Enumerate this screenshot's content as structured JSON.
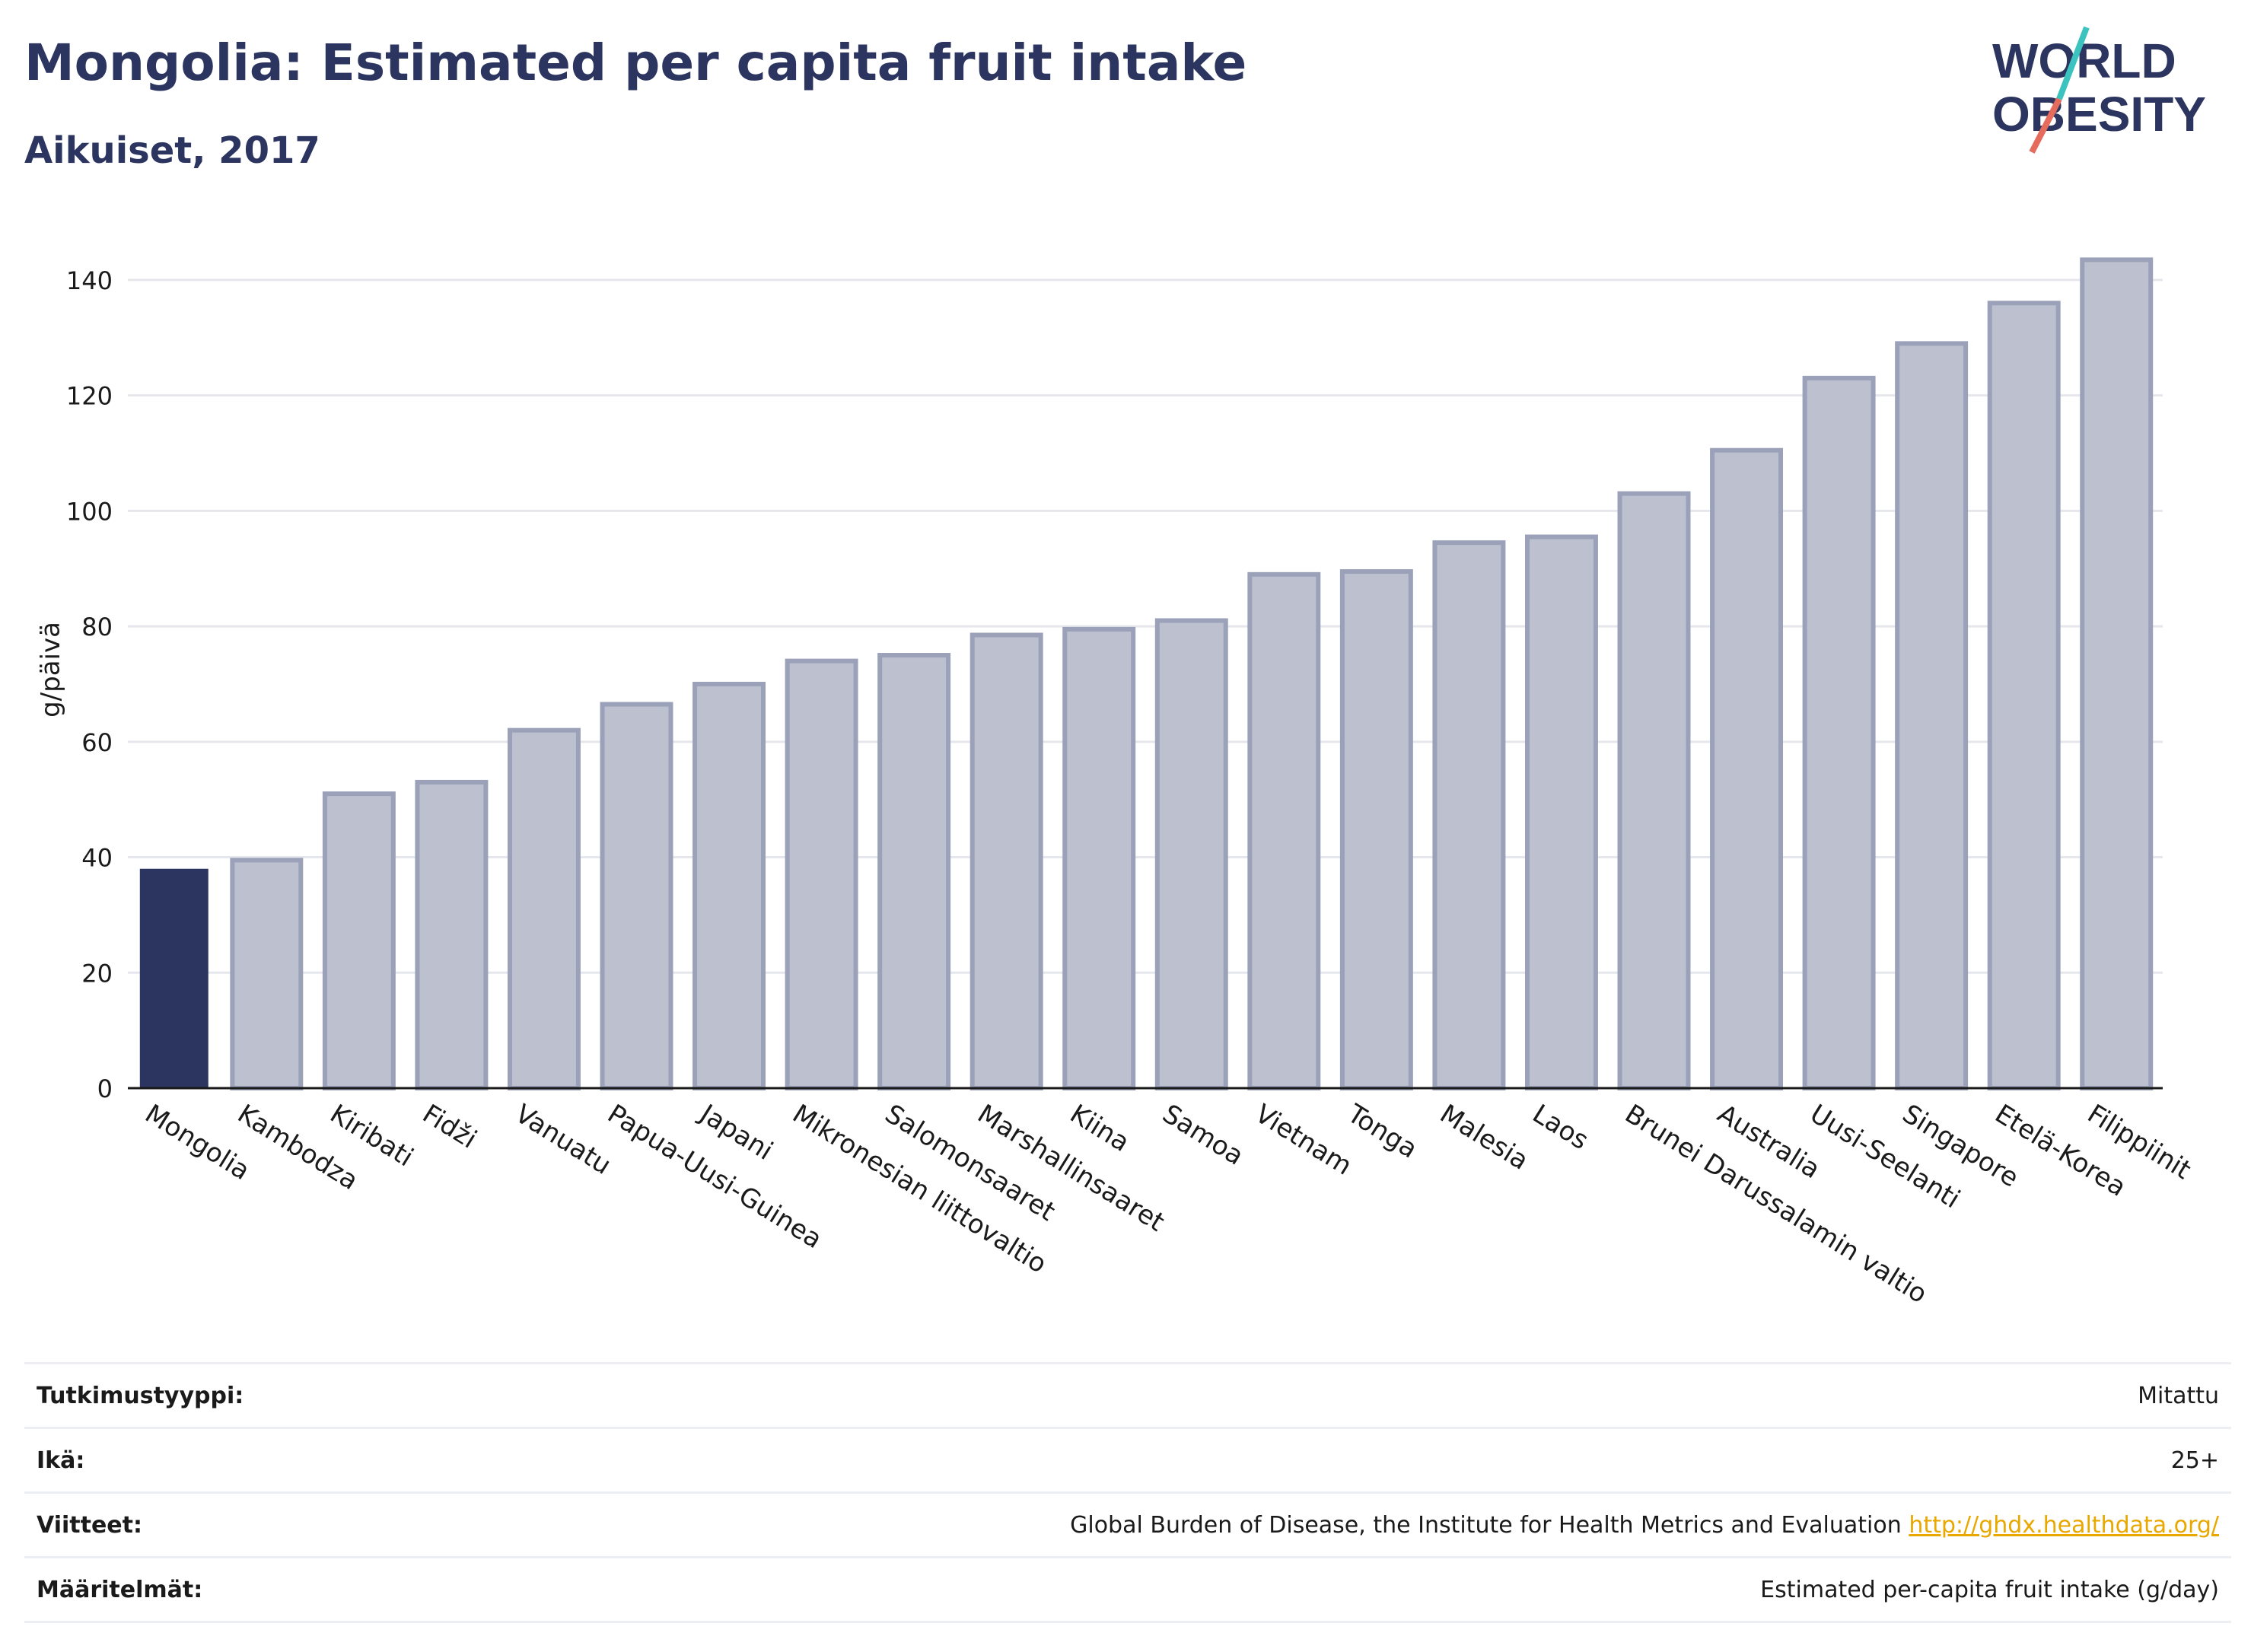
{
  "header": {
    "title": "Mongolia: Estimated per capita fruit intake",
    "subtitle": "Aikuiset, 2017"
  },
  "logo": {
    "line1": "WORLD",
    "line2": "OBESITY"
  },
  "colors": {
    "highlight": "#2b3560",
    "bar_fill": "#bcc0cf",
    "bar_stroke": "#9aa1b9",
    "teal": "#3cc3c0",
    "coral": "#e56b5d"
  },
  "chart_data": {
    "type": "bar",
    "title": "Mongolia: Estimated per capita fruit intake",
    "subtitle": "Aikuiset, 2017",
    "ylabel": "g/päivä",
    "xlabel": "",
    "ylim": [
      0,
      145
    ],
    "yticks": [
      0,
      20,
      40,
      60,
      80,
      100,
      120,
      140
    ],
    "grid": true,
    "highlight": "Mongolia",
    "categories": [
      "Mongolia",
      "Kambodza",
      "Kiribati",
      "Fidži",
      "Vanuatu",
      "Papua-Uusi-Guinea",
      "Japani",
      "Mikronesian liittovaltio",
      "Salomonsaaret",
      "Marshallinsaaret",
      "Kiina",
      "Samoa",
      "Vietnam",
      "Tonga",
      "Malesia",
      "Laos",
      "Brunei Darussalamin valtio",
      "Australia",
      "Uusi-Seelanti",
      "Singapore",
      "Etelä-Korea",
      "Filippiinit"
    ],
    "values": [
      38,
      39.5,
      51,
      53,
      62,
      66.5,
      70,
      74,
      75,
      78.5,
      79.5,
      81,
      89,
      89.5,
      94.5,
      95.5,
      103,
      110.5,
      123,
      129,
      136,
      143.5
    ]
  },
  "info": [
    {
      "label": "Tutkimustyyppi:",
      "value": "Mitattu"
    },
    {
      "label": "Ikä:",
      "value": "25+"
    },
    {
      "label": "Viitteet:",
      "value": "Global Burden of Disease, the Institute for Health Metrics and Evaluation",
      "link": "http://ghdx.healthdata.org/"
    },
    {
      "label": "Määritelmät:",
      "value": "Estimated per-capita fruit intake (g/day)"
    }
  ]
}
